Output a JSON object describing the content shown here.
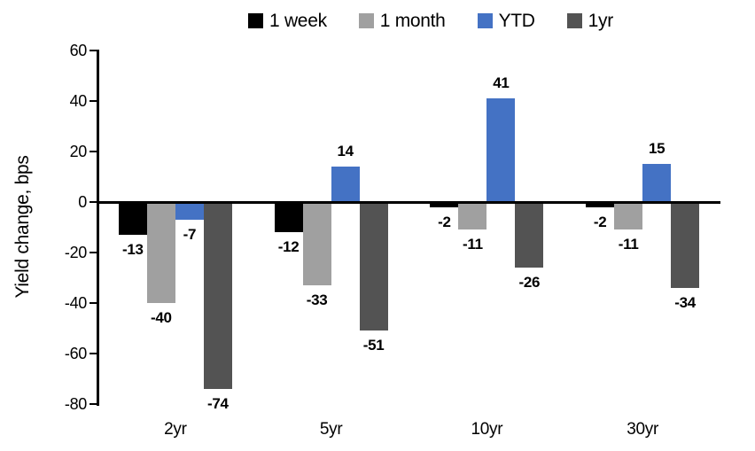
{
  "chart_data": {
    "type": "bar",
    "ylabel": "Yield change, bps",
    "xlabel": "",
    "ylim": [
      -80,
      60
    ],
    "yticks": [
      60,
      40,
      20,
      0,
      -20,
      -40,
      -60,
      -80
    ],
    "categories": [
      "2yr",
      "5yr",
      "10yr",
      "30yr"
    ],
    "series": [
      {
        "name": "1 week",
        "color": "#000000",
        "values": [
          -13,
          -12,
          -2,
          -2
        ]
      },
      {
        "name": "1 month",
        "color": "#A0A0A0",
        "values": [
          -40,
          -33,
          -11,
          -11
        ]
      },
      {
        "name": "YTD",
        "color": "#4472C4",
        "values": [
          -7,
          14,
          41,
          15
        ]
      },
      {
        "name": "1yr",
        "color": "#535353",
        "values": [
          -74,
          -51,
          -26,
          -34
        ]
      }
    ],
    "legend_position": "top",
    "grid": false,
    "data_labels": "outside-end",
    "axis_color": "#000000",
    "background_color": "#FFFFFF"
  }
}
